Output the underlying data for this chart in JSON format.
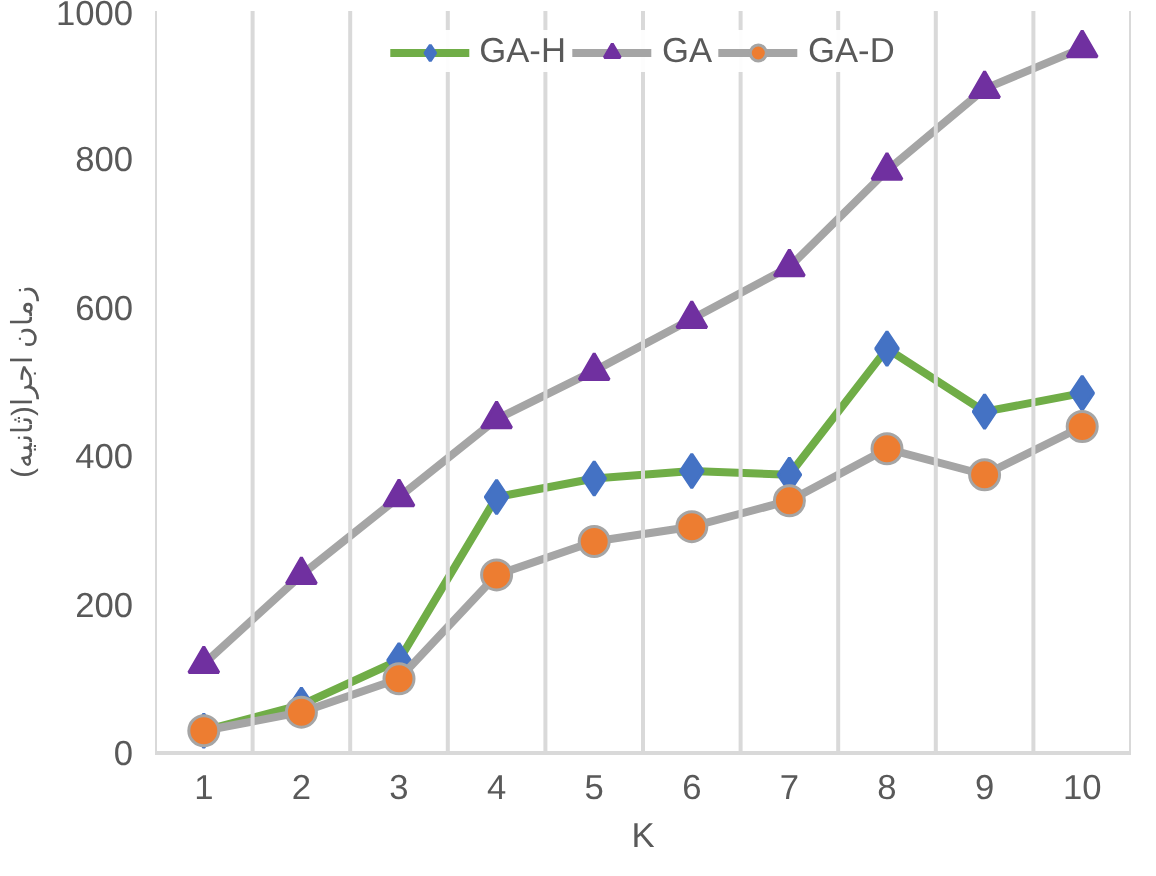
{
  "chart_data": {
    "type": "line",
    "xlabel": "K",
    "ylabel": "زمان اجرا(ثانیه)",
    "categories": [
      "1",
      "2",
      "3",
      "4",
      "5",
      "6",
      "7",
      "8",
      "9",
      "10"
    ],
    "series": [
      {
        "name": "GA-H",
        "color": "#70ad47",
        "marker": "diamond",
        "colors": [
          "#4472c4",
          "#4472c4",
          "#4472c4",
          "#4472c4",
          "#4472c4",
          "#4472c4",
          "#4472c4",
          "#4472c4",
          "#4472c4",
          "#4472c4"
        ],
        "values": [
          30,
          65,
          125,
          345,
          370,
          380,
          375,
          545,
          460,
          485
        ]
      },
      {
        "name": "GA",
        "color": "#a5a5a5",
        "marker": "triangle",
        "colors": [
          "#7030a0",
          "#7030a0",
          "#7030a0",
          "#7030a0",
          "#7030a0",
          "#7030a0",
          "#7030a0",
          "#7030a0",
          "#7030a0",
          "#7030a0"
        ],
        "values": [
          120,
          240,
          345,
          450,
          515,
          585,
          655,
          785,
          895,
          950
        ]
      },
      {
        "name": "GA-D",
        "color": "#a5a5a5",
        "marker": "circle",
        "colors": [
          "#ed7d31",
          "#ed7d31",
          "#ed7d31",
          "#ed7d31",
          "#ed7d31",
          "#ed7d31",
          "#ed7d31",
          "#ed7d31",
          "#ed7d31",
          "#ed7d31"
        ],
        "values": [
          30,
          55,
          100,
          240,
          285,
          305,
          340,
          410,
          375,
          440
        ]
      }
    ],
    "ylim": [
      0,
      1000
    ],
    "yticks": [
      0,
      200,
      400,
      600,
      800,
      1000
    ],
    "grid": "x",
    "legend": "top",
    "line_style": "solid"
  }
}
